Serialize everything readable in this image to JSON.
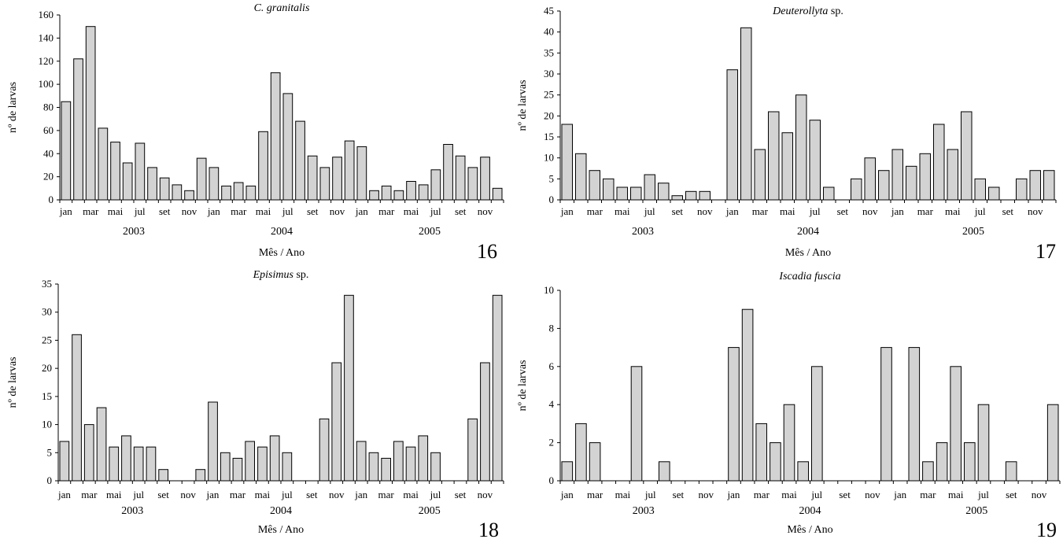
{
  "chart_data": [
    {
      "type": "bar",
      "title": "C. granitalis",
      "title_italic": "C. granitalis",
      "title_rest": "",
      "xlabel": "Mês / Ano",
      "ylabel": "nº de larvas",
      "figure_number": "16",
      "ylim": [
        0,
        160
      ],
      "yticks": [
        0,
        20,
        40,
        60,
        80,
        100,
        120,
        140,
        160
      ],
      "categories": [
        "jan",
        "fev",
        "mar",
        "abr",
        "mai",
        "jun",
        "jul",
        "ago",
        "set",
        "out",
        "nov",
        "dez",
        "jan",
        "fev",
        "mar",
        "abr",
        "mai",
        "jun",
        "jul",
        "ago",
        "set",
        "out",
        "nov",
        "dez",
        "jan",
        "fev",
        "mar",
        "abr",
        "mai",
        "jun",
        "jul",
        "ago",
        "set",
        "out",
        "nov",
        "dez"
      ],
      "tick_labels": [
        {
          "i": 0,
          "text": "jan"
        },
        {
          "i": 2,
          "text": "mar"
        },
        {
          "i": 4,
          "text": "mai"
        },
        {
          "i": 6,
          "text": "jul"
        },
        {
          "i": 8,
          "text": "set"
        },
        {
          "i": 10,
          "text": "nov"
        },
        {
          "i": 12,
          "text": "jan"
        },
        {
          "i": 14,
          "text": "mar"
        },
        {
          "i": 16,
          "text": "mai"
        },
        {
          "i": 18,
          "text": "jul"
        },
        {
          "i": 20,
          "text": "set"
        },
        {
          "i": 22,
          "text": "nov"
        },
        {
          "i": 24,
          "text": "jan"
        },
        {
          "i": 26,
          "text": "mar"
        },
        {
          "i": 28,
          "text": "mai"
        },
        {
          "i": 30,
          "text": "jul"
        },
        {
          "i": 32,
          "text": "set"
        },
        {
          "i": 34,
          "text": "nov"
        }
      ],
      "years": [
        {
          "label": "2003",
          "start": 0,
          "end": 11
        },
        {
          "label": "2004",
          "start": 12,
          "end": 23
        },
        {
          "label": "2005",
          "start": 24,
          "end": 35
        }
      ],
      "values": [
        85,
        122,
        150,
        62,
        50,
        32,
        49,
        28,
        19,
        13,
        8,
        36,
        28,
        12,
        15,
        12,
        59,
        110,
        92,
        68,
        38,
        28,
        37,
        51,
        46,
        8,
        12,
        8,
        16,
        13,
        26,
        48,
        38,
        28,
        37,
        10
      ]
    },
    {
      "type": "bar",
      "title": "Deuterollyta sp.",
      "title_italic": "Deuterollyta",
      "title_rest": " sp.",
      "xlabel": "Mês / Ano",
      "ylabel": "nº de larvas",
      "figure_number": "17",
      "ylim": [
        0,
        45
      ],
      "yticks": [
        0,
        5,
        10,
        15,
        20,
        25,
        30,
        35,
        40,
        45
      ],
      "categories": [
        "jan",
        "fev",
        "mar",
        "abr",
        "mai",
        "jun",
        "jul",
        "ago",
        "set",
        "out",
        "nov",
        "dez",
        "jan",
        "fev",
        "mar",
        "abr",
        "mai",
        "jun",
        "jul",
        "ago",
        "set",
        "out",
        "nov",
        "dez",
        "jan",
        "fev",
        "mar",
        "abr",
        "mai",
        "jun",
        "jul",
        "ago",
        "set",
        "out",
        "nov",
        "dez"
      ],
      "tick_labels": [
        {
          "i": 0,
          "text": "jan"
        },
        {
          "i": 2,
          "text": "mar"
        },
        {
          "i": 4,
          "text": "mai"
        },
        {
          "i": 6,
          "text": "jul"
        },
        {
          "i": 8,
          "text": "set"
        },
        {
          "i": 10,
          "text": "nov"
        },
        {
          "i": 12,
          "text": "jan"
        },
        {
          "i": 14,
          "text": "mar"
        },
        {
          "i": 16,
          "text": "mai"
        },
        {
          "i": 18,
          "text": "jul"
        },
        {
          "i": 20,
          "text": "set"
        },
        {
          "i": 22,
          "text": "nov"
        },
        {
          "i": 24,
          "text": "jan"
        },
        {
          "i": 26,
          "text": "mar"
        },
        {
          "i": 28,
          "text": "mai"
        },
        {
          "i": 30,
          "text": "jul"
        },
        {
          "i": 32,
          "text": "set"
        },
        {
          "i": 34,
          "text": "nov"
        }
      ],
      "years": [
        {
          "label": "2003",
          "start": 0,
          "end": 11
        },
        {
          "label": "2004",
          "start": 12,
          "end": 23
        },
        {
          "label": "2005",
          "start": 24,
          "end": 35
        }
      ],
      "values": [
        18,
        11,
        7,
        5,
        3,
        3,
        6,
        4,
        1,
        2,
        2,
        0,
        31,
        41,
        12,
        21,
        16,
        25,
        19,
        3,
        0,
        5,
        10,
        7,
        12,
        8,
        11,
        18,
        12,
        21,
        5,
        3,
        0,
        5,
        7,
        7
      ]
    },
    {
      "type": "bar",
      "title": "Episimus sp.",
      "title_italic": "Episimus",
      "title_rest": " sp.",
      "xlabel": "Mês / Ano",
      "ylabel": "nº de larvas",
      "figure_number": "18",
      "ylim": [
        0,
        35
      ],
      "yticks": [
        0,
        5,
        10,
        15,
        20,
        25,
        30,
        35
      ],
      "categories": [
        "jan",
        "fev",
        "mar",
        "abr",
        "mai",
        "jun",
        "jul",
        "ago",
        "set",
        "out",
        "nov",
        "dez",
        "jan",
        "fev",
        "mar",
        "abr",
        "mai",
        "jun",
        "jul",
        "ago",
        "set",
        "out",
        "nov",
        "dez",
        "jan",
        "fev",
        "mar",
        "abr",
        "mai",
        "jun",
        "jul",
        "ago",
        "set",
        "out",
        "nov",
        "dez"
      ],
      "tick_labels": [
        {
          "i": 0,
          "text": "jan"
        },
        {
          "i": 2,
          "text": "mar"
        },
        {
          "i": 4,
          "text": "mai"
        },
        {
          "i": 6,
          "text": "jul"
        },
        {
          "i": 8,
          "text": "set"
        },
        {
          "i": 10,
          "text": "nov"
        },
        {
          "i": 12,
          "text": "jan"
        },
        {
          "i": 14,
          "text": "mar"
        },
        {
          "i": 16,
          "text": "mai"
        },
        {
          "i": 18,
          "text": "jul"
        },
        {
          "i": 20,
          "text": "set"
        },
        {
          "i": 22,
          "text": "nov"
        },
        {
          "i": 24,
          "text": "jan"
        },
        {
          "i": 26,
          "text": "mar"
        },
        {
          "i": 28,
          "text": "mai"
        },
        {
          "i": 30,
          "text": "jul"
        },
        {
          "i": 32,
          "text": "set"
        },
        {
          "i": 34,
          "text": "nov"
        }
      ],
      "years": [
        {
          "label": "2003",
          "start": 0,
          "end": 11
        },
        {
          "label": "2004",
          "start": 12,
          "end": 23
        },
        {
          "label": "2005",
          "start": 24,
          "end": 35
        }
      ],
      "values": [
        7,
        26,
        10,
        13,
        6,
        8,
        6,
        6,
        2,
        0,
        0,
        2,
        14,
        5,
        4,
        7,
        6,
        8,
        5,
        0,
        0,
        11,
        21,
        33,
        7,
        5,
        4,
        7,
        6,
        8,
        5,
        0,
        0,
        11,
        21,
        33
      ]
    },
    {
      "type": "bar",
      "title": "Iscadia fuscia",
      "title_italic": "Iscadia fuscia",
      "title_rest": "",
      "xlabel": "Mês / Ano",
      "ylabel": "nº de larvas",
      "figure_number": "19",
      "ylim": [
        0,
        10
      ],
      "yticks": [
        0,
        2,
        4,
        6,
        8,
        10
      ],
      "categories": [
        "jan",
        "fev",
        "mar",
        "abr",
        "mai",
        "jun",
        "jul",
        "ago",
        "set",
        "out",
        "nov",
        "dez",
        "jan",
        "fev",
        "mar",
        "abr",
        "mai",
        "jun",
        "jul",
        "ago",
        "set",
        "out",
        "nov",
        "dez",
        "jan",
        "fev",
        "mar",
        "abr",
        "mai",
        "jun",
        "jul",
        "ago",
        "set",
        "out",
        "nov",
        "dez"
      ],
      "tick_labels": [
        {
          "i": 0,
          "text": "jan"
        },
        {
          "i": 2,
          "text": "mar"
        },
        {
          "i": 4,
          "text": "mai"
        },
        {
          "i": 6,
          "text": "jul"
        },
        {
          "i": 8,
          "text": "set"
        },
        {
          "i": 10,
          "text": "nov"
        },
        {
          "i": 12,
          "text": "jan"
        },
        {
          "i": 14,
          "text": "mar"
        },
        {
          "i": 16,
          "text": "mai"
        },
        {
          "i": 18,
          "text": "jul"
        },
        {
          "i": 20,
          "text": "set"
        },
        {
          "i": 22,
          "text": "nov"
        },
        {
          "i": 24,
          "text": "jan"
        },
        {
          "i": 26,
          "text": "mar"
        },
        {
          "i": 28,
          "text": "mai"
        },
        {
          "i": 30,
          "text": "jul"
        },
        {
          "i": 32,
          "text": "set"
        },
        {
          "i": 34,
          "text": "nov"
        }
      ],
      "years": [
        {
          "label": "2003",
          "start": 0,
          "end": 11
        },
        {
          "label": "2004",
          "start": 12,
          "end": 23
        },
        {
          "label": "2005",
          "start": 24,
          "end": 35
        }
      ],
      "values": [
        1,
        3,
        2,
        0,
        0,
        6,
        0,
        1,
        0,
        0,
        0,
        0,
        7,
        9,
        3,
        2,
        4,
        1,
        6,
        0,
        0,
        0,
        0,
        7,
        0,
        7,
        1,
        2,
        6,
        2,
        4,
        0,
        1,
        0,
        0,
        4
      ]
    }
  ]
}
